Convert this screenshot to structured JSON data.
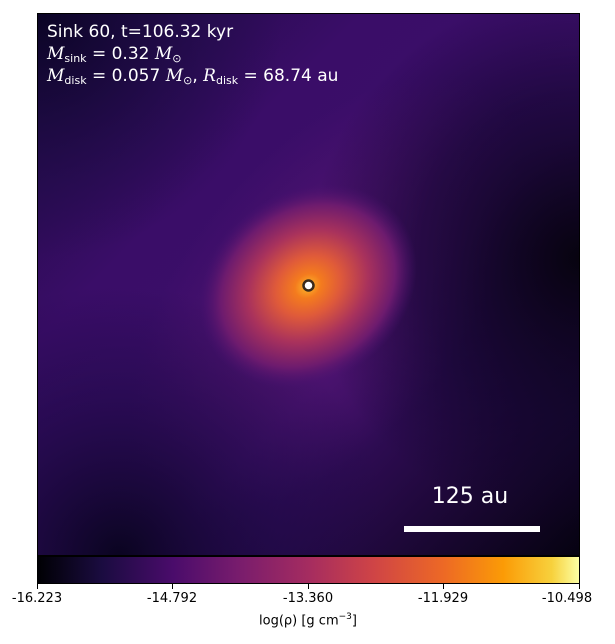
{
  "annotation": {
    "line1": "Sink 60, t=106.32 kyr",
    "msink_symbol": "M",
    "msink_sub": "sink",
    "msink_value": "= 0.32",
    "msun_symbol": "M",
    "msun_sub": "⊙",
    "mdisk_symbol": "M",
    "mdisk_sub": "disk",
    "mdisk_value": "= 0.057",
    "rdisk_symbol": "R",
    "rdisk_sub": "disk",
    "rdisk_value": "= 68.74 au"
  },
  "scale_bar": {
    "label": "125 au"
  },
  "colorbar": {
    "ticks": [
      "-16.223",
      "-14.792",
      "-13.360",
      "-11.929",
      "-10.498"
    ],
    "label_main": "log(ρ) [g cm",
    "label_sup": "−3",
    "label_end": "]",
    "colormap": "inferno"
  }
}
